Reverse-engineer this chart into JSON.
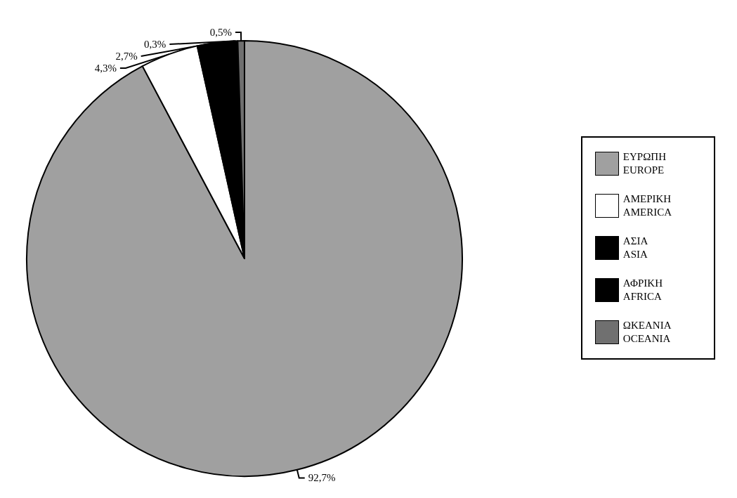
{
  "chart_data": {
    "type": "pie",
    "categories": [
      "ΕΥΡΩΠΗ\nEUROPE",
      "ΑΜΕΡΙΚΗ\nAMERICA",
      "ΑΣΙΑ\nASIA",
      "ΑΦΡΙΚΗ\nAFRICA",
      "ΩΚΕΑΝΙΑ\nOCEANIA"
    ],
    "values": [
      92.7,
      4.3,
      2.7,
      0.3,
      0.5
    ],
    "colors": [
      "#a0a0a0",
      "#ffffff",
      "#000000",
      "#000000",
      "#707070"
    ],
    "value_labels": [
      "92,7%",
      "4,3%",
      "2,7%",
      "0,3%",
      "0,5%"
    ],
    "legend": "right"
  }
}
